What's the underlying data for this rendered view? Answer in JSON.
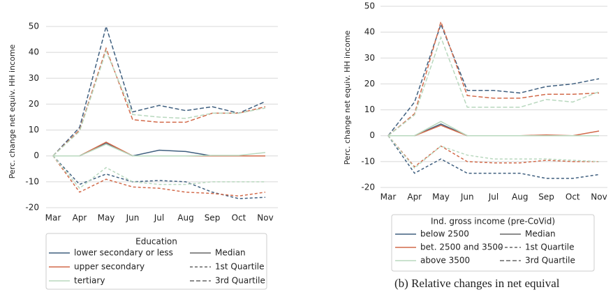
{
  "chart_data": [
    {
      "type": "line",
      "ylabel": "Perc. change net equiv. HH income",
      "categories": [
        "Mar",
        "Apr",
        "May",
        "Jun",
        "Jul",
        "Aug",
        "Sep",
        "Oct",
        "Nov"
      ],
      "ylim": [
        -21,
        52
      ],
      "yticks": [
        -20,
        -10,
        0,
        10,
        20,
        30,
        40,
        50
      ],
      "grid": true,
      "legend_title": "Education",
      "line_styles": [
        {
          "name": "Median",
          "dash": "none"
        },
        {
          "name": "1st Quartile",
          "dash": "4,3"
        },
        {
          "name": "3rd Quartile",
          "dash": "6,3"
        }
      ],
      "series": [
        {
          "name": "lower secondary or less",
          "color": "#3f5f7f",
          "median": [
            0,
            0,
            5,
            0,
            2.2,
            1.7,
            0,
            0,
            0
          ],
          "q1": [
            0,
            -11,
            -7,
            -10,
            -9.5,
            -10,
            -14,
            -16.5,
            -16
          ],
          "q3": [
            0,
            11,
            50,
            17,
            19.5,
            17.5,
            19,
            16.5,
            21
          ]
        },
        {
          "name": "upper secondary",
          "color": "#d26a4a",
          "median": [
            0,
            0,
            5.3,
            0,
            0,
            0,
            0,
            0,
            0
          ],
          "q1": [
            0,
            -14,
            -9,
            -12,
            -12.5,
            -14,
            -14.5,
            -15.5,
            -14
          ],
          "q3": [
            0,
            10,
            41.5,
            14,
            13,
            13,
            16.5,
            16.5,
            19
          ]
        },
        {
          "name": "tertiary",
          "color": "#b8d8be",
          "median": [
            0,
            0,
            4.5,
            0,
            0,
            0,
            0.2,
            0.2,
            1.3
          ],
          "q1": [
            0,
            -12.5,
            -4.5,
            -10,
            -11,
            -11,
            -10,
            -10,
            -10
          ],
          "q3": [
            0,
            9.5,
            40.5,
            16,
            15,
            14.5,
            16.5,
            16.5,
            18.5
          ]
        }
      ]
    },
    {
      "type": "line",
      "ylabel": "Perc. change net equiv. HH income",
      "categories": [
        "Mar",
        "Apr",
        "May",
        "Jun",
        "Jul",
        "Aug",
        "Sep",
        "Oct",
        "Nov"
      ],
      "ylim": [
        -21,
        52
      ],
      "yticks": [
        -20,
        -10,
        0,
        10,
        20,
        30,
        40,
        50
      ],
      "grid": true,
      "legend_title": "Ind. gross income (pre-CoVid)",
      "caption": "(b) Relative changes in net equival",
      "line_styles": [
        {
          "name": "Median",
          "dash": "none"
        },
        {
          "name": "1st Quartile",
          "dash": "4,3"
        },
        {
          "name": "3rd Quartile",
          "dash": "6,3"
        }
      ],
      "series": [
        {
          "name": "below 2500",
          "color": "#3f5f7f",
          "median": [
            0,
            0,
            4.5,
            0,
            0,
            0,
            0,
            0,
            0
          ],
          "q1": [
            0,
            -14.5,
            -9,
            -14.5,
            -14.5,
            -14.5,
            -16.5,
            -16.5,
            -15
          ],
          "q3": [
            0,
            13,
            43,
            17.5,
            17.5,
            16.5,
            19,
            20,
            22
          ]
        },
        {
          "name": "bet. 2500 and 3500",
          "color": "#d26a4a",
          "median": [
            0,
            0,
            4,
            0,
            0,
            0,
            0.3,
            0,
            1.8
          ],
          "q1": [
            0,
            -12,
            -4,
            -10,
            -10.5,
            -10.5,
            -9.5,
            -10,
            -10
          ],
          "q3": [
            0,
            8.5,
            44,
            15.5,
            14.5,
            14.5,
            16,
            16,
            16.5
          ]
        },
        {
          "name": "above 3500",
          "color": "#b8d8be",
          "median": [
            0,
            0,
            5.5,
            0,
            0,
            0,
            0,
            0,
            0
          ],
          "q1": [
            0,
            -12.5,
            -4,
            -7.5,
            -9,
            -9,
            -9,
            -9.5,
            -10
          ],
          "q3": [
            0,
            8,
            38,
            11,
            11,
            11,
            14,
            13,
            17
          ]
        }
      ]
    }
  ]
}
